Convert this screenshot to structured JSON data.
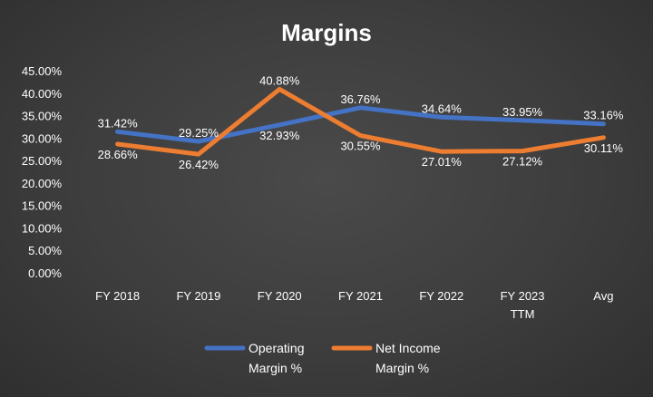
{
  "chart_data": {
    "type": "line",
    "title": "Margins",
    "categories": [
      [
        "FY 2018"
      ],
      [
        "FY 2019"
      ],
      [
        "FY 2020"
      ],
      [
        "FY 2021"
      ],
      [
        "FY 2022"
      ],
      [
        "FY 2023",
        "TTM"
      ],
      [
        "Avg"
      ]
    ],
    "y_ticks": [
      "0.00%",
      "5.00%",
      "10.00%",
      "15.00%",
      "20.00%",
      "25.00%",
      "30.00%",
      "35.00%",
      "40.00%",
      "45.00%"
    ],
    "ylim": [
      0,
      45
    ],
    "series": [
      {
        "name": "Operating Margin %",
        "legend_lines": [
          "Operating",
          "Margin %"
        ],
        "color": "#4472c4",
        "values": [
          31.42,
          29.25,
          32.93,
          36.76,
          34.64,
          33.95,
          33.16
        ],
        "labels": [
          "31.42%",
          "29.25%",
          "32.93%",
          "36.76%",
          "34.64%",
          "33.95%",
          "33.16%"
        ]
      },
      {
        "name": "Net Income Margin %",
        "legend_lines": [
          "Net Income",
          "Margin %"
        ],
        "color": "#ed7d31",
        "values": [
          28.66,
          26.42,
          40.88,
          30.55,
          27.01,
          27.12,
          30.11
        ],
        "labels": [
          "28.66%",
          "26.42%",
          "40.88%",
          "30.55%",
          "27.01%",
          "27.12%",
          "30.11%"
        ]
      }
    ]
  }
}
